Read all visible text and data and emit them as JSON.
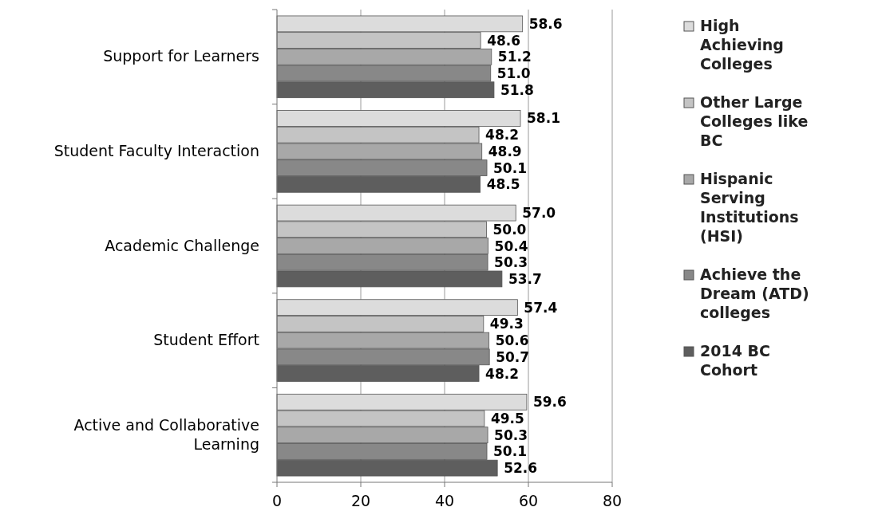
{
  "chart_data": {
    "type": "bar",
    "orientation": "horizontal",
    "categories": [
      "Support for Learners",
      "Student Faculty Interaction",
      "Academic Challenge",
      "Student Effort",
      "Active and Collaborative Learning"
    ],
    "series": [
      {
        "name": "High Achieving Colleges",
        "color": "#dcdcdc",
        "values": [
          58.6,
          58.1,
          57.0,
          57.4,
          59.6
        ],
        "value_labels": [
          "58.6",
          "58.1",
          "57.0",
          "57.4",
          "59.6"
        ]
      },
      {
        "name": "Other Large Colleges like BC",
        "color": "#c4c4c4",
        "values": [
          48.6,
          48.2,
          50.0,
          49.3,
          49.5
        ],
        "value_labels": [
          "48.6",
          "48.2",
          "50.0",
          "49.3",
          "49.5"
        ]
      },
      {
        "name": "Hispanic Serving Institutions (HSI)",
        "color": "#a8a8a8",
        "values": [
          51.2,
          48.9,
          50.4,
          50.6,
          50.3
        ],
        "value_labels": [
          "51.2",
          "48.9",
          "50.4",
          "50.6",
          "50.3"
        ]
      },
      {
        "name": "Achieve the Dream (ATD) colleges",
        "color": "#888888",
        "values": [
          51.0,
          50.1,
          50.3,
          50.7,
          50.1
        ],
        "value_labels": [
          "51.0",
          "50.1",
          "50.3",
          "50.7",
          "50.1"
        ]
      },
      {
        "name": "2014 BC Cohort",
        "color": "#5e5e5e",
        "values": [
          51.8,
          48.5,
          53.7,
          48.2,
          52.6
        ],
        "value_labels": [
          "51.8",
          "48.5",
          "53.7",
          "48.2",
          "52.6"
        ]
      }
    ],
    "xlim": [
      0,
      80
    ],
    "xticks": [
      0,
      20,
      40,
      60,
      80
    ],
    "grid": "x",
    "legend": "right"
  }
}
